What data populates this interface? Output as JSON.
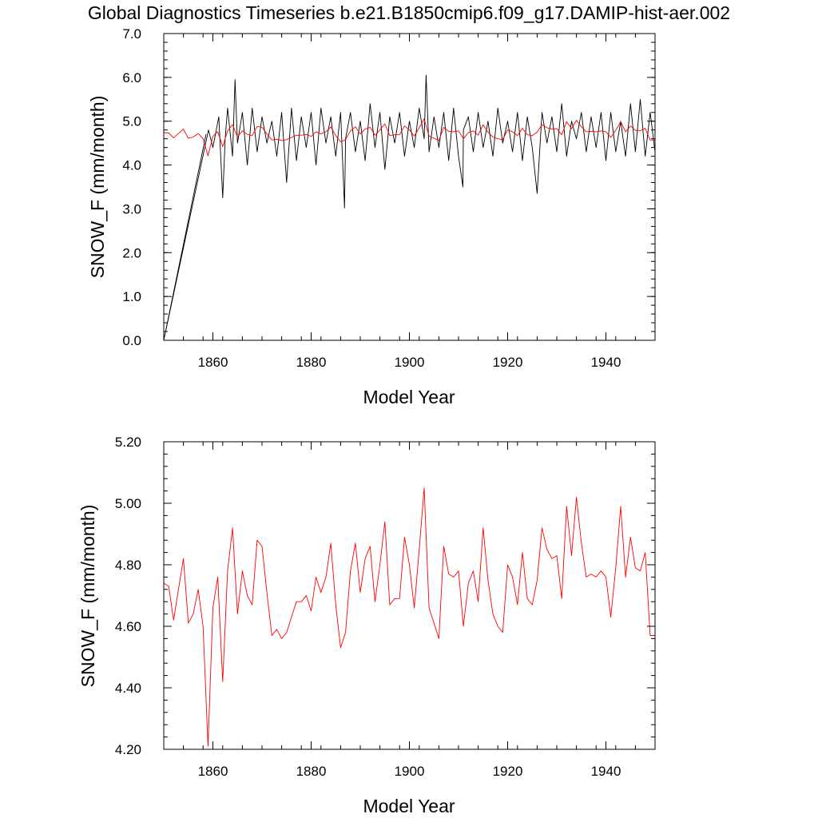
{
  "page_title": "Global Diagnostics Timeseries b.e21.B1850cmip6.f09_g17.DAMIP-hist-aer.002",
  "colors": {
    "monthly": "#000000",
    "annual": "#ff0000",
    "axis": "#000000"
  },
  "chart_data": [
    {
      "type": "line",
      "xlabel": "Model Year",
      "ylabel": "SNOW_F (mm/month)",
      "xlim": [
        1850,
        1950
      ],
      "ylim": [
        0.0,
        7.0
      ],
      "xticks": [
        1860,
        1880,
        1900,
        1920,
        1940
      ],
      "xtick_labels": [
        "1860",
        "1880",
        "1900",
        "1920",
        "1940"
      ],
      "yticks": [
        0.0,
        1.0,
        2.0,
        3.0,
        4.0,
        5.0,
        6.0,
        7.0
      ],
      "ytick_labels": [
        "0.0",
        "1.0",
        "2.0",
        "3.0",
        "4.0",
        "5.0",
        "6.0",
        "7.0"
      ],
      "grid": false,
      "series": [
        {
          "role": "monthly",
          "color": "#000000",
          "x": [
            1850.0,
            1858.6,
            1850.0,
            1859.1,
            1860.0,
            1861.2,
            1862.0,
            1862.5,
            1863.0,
            1864.0,
            1864.5,
            1865.0,
            1866.0,
            1867.0,
            1868.0,
            1869.0,
            1870.0,
            1871.0,
            1872.0,
            1873.0,
            1874.0,
            1875.0,
            1876.0,
            1877.0,
            1878.0,
            1879.0,
            1880.0,
            1881.0,
            1882.0,
            1883.0,
            1884.0,
            1885.0,
            1886.0,
            1886.8,
            1887.0,
            1888.0,
            1889.0,
            1890.0,
            1891.0,
            1892.0,
            1893.0,
            1894.0,
            1895.0,
            1896.0,
            1897.0,
            1898.0,
            1899.0,
            1900.0,
            1901.0,
            1902.0,
            1903.0,
            1903.4,
            1904.0,
            1905.0,
            1906.0,
            1907.0,
            1908.0,
            1909.0,
            1910.0,
            1910.9,
            1911.0,
            1912.0,
            1913.0,
            1914.0,
            1915.0,
            1916.0,
            1917.0,
            1918.0,
            1919.0,
            1920.0,
            1921.0,
            1922.0,
            1923.0,
            1924.0,
            1925.0,
            1926.0,
            1927.0,
            1928.0,
            1929.0,
            1930.0,
            1931.0,
            1932.0,
            1933.0,
            1934.0,
            1935.0,
            1936.0,
            1937.0,
            1938.0,
            1939.0,
            1940.0,
            1941.0,
            1942.0,
            1943.0,
            1944.0,
            1945.0,
            1946.0,
            1947.0,
            1948.0,
            1949.0,
            1950.0
          ],
          "y": [
            0.0,
            4.7,
            0.0,
            4.8,
            4.4,
            5.1,
            3.25,
            4.6,
            5.3,
            4.2,
            5.95,
            4.5,
            5.2,
            4.0,
            5.3,
            4.3,
            5.1,
            4.5,
            5.0,
            4.2,
            5.2,
            3.6,
            5.3,
            4.1,
            5.1,
            4.4,
            5.2,
            4.0,
            5.3,
            4.5,
            5.1,
            4.2,
            5.2,
            3.02,
            4.6,
            5.2,
            4.3,
            5.0,
            4.1,
            5.4,
            4.4,
            5.2,
            3.9,
            5.1,
            4.5,
            5.2,
            4.2,
            5.0,
            4.4,
            5.3,
            4.6,
            6.05,
            4.3,
            5.1,
            4.4,
            5.2,
            4.1,
            5.3,
            4.2,
            3.5,
            4.8,
            5.1,
            4.3,
            5.2,
            4.4,
            5.0,
            4.2,
            5.3,
            4.5,
            5.0,
            4.3,
            5.2,
            4.1,
            5.1,
            4.4,
            3.35,
            5.2,
            4.5,
            5.1,
            4.3,
            5.4,
            4.2,
            5.0,
            4.6,
            5.2,
            4.3,
            5.1,
            4.4,
            5.2,
            4.1,
            5.2,
            4.3,
            5.0,
            4.2,
            5.4,
            4.3,
            5.5,
            4.2,
            5.2,
            4.3
          ]
        },
        {
          "role": "annual",
          "color": "#ff0000",
          "x": [
            1850,
            1851,
            1852,
            1853,
            1854,
            1855,
            1856,
            1857,
            1858,
            1859,
            1860,
            1861,
            1862,
            1863,
            1864,
            1865,
            1866,
            1867,
            1868,
            1869,
            1870,
            1871,
            1872,
            1873,
            1874,
            1875,
            1876,
            1877,
            1878,
            1879,
            1880,
            1881,
            1882,
            1883,
            1884,
            1885,
            1886,
            1887,
            1888,
            1889,
            1890,
            1891,
            1892,
            1893,
            1894,
            1895,
            1896,
            1897,
            1898,
            1899,
            1900,
            1901,
            1902,
            1903,
            1904,
            1905,
            1906,
            1907,
            1908,
            1909,
            1910,
            1911,
            1912,
            1913,
            1914,
            1915,
            1916,
            1917,
            1918,
            1919,
            1920,
            1921,
            1922,
            1923,
            1924,
            1925,
            1926,
            1927,
            1928,
            1929,
            1930,
            1931,
            1932,
            1933,
            1934,
            1935,
            1936,
            1937,
            1938,
            1939,
            1940,
            1941,
            1942,
            1943,
            1944,
            1945,
            1946,
            1947,
            1948,
            1949,
            1950
          ],
          "y": [
            4.74,
            4.73,
            4.62,
            4.72,
            4.82,
            4.61,
            4.64,
            4.72,
            4.6,
            4.21,
            4.66,
            4.76,
            4.42,
            4.78,
            4.92,
            4.64,
            4.78,
            4.7,
            4.67,
            4.88,
            4.86,
            4.71,
            4.57,
            4.59,
            4.56,
            4.58,
            4.63,
            4.68,
            4.68,
            4.7,
            4.65,
            4.76,
            4.71,
            4.76,
            4.87,
            4.67,
            4.53,
            4.58,
            4.78,
            4.87,
            4.71,
            4.82,
            4.86,
            4.68,
            4.8,
            4.94,
            4.67,
            4.69,
            4.69,
            4.89,
            4.8,
            4.66,
            4.85,
            5.05,
            4.66,
            4.61,
            4.56,
            4.86,
            4.77,
            4.76,
            4.78,
            4.6,
            4.74,
            4.78,
            4.68,
            4.92,
            4.75,
            4.64,
            4.6,
            4.58,
            4.8,
            4.76,
            4.67,
            4.84,
            4.69,
            4.67,
            4.75,
            4.92,
            4.85,
            4.82,
            4.83,
            4.69,
            4.99,
            4.83,
            5.02,
            4.87,
            4.76,
            4.77,
            4.76,
            4.78,
            4.76,
            4.63,
            4.79,
            4.99,
            4.76,
            4.89,
            4.79,
            4.78,
            4.84,
            4.57,
            4.57
          ]
        }
      ]
    },
    {
      "type": "line",
      "xlabel": "Model Year",
      "ylabel": "SNOW_F (mm/month)",
      "xlim": [
        1850,
        1950
      ],
      "ylim": [
        4.2,
        5.2
      ],
      "xticks": [
        1860,
        1880,
        1900,
        1920,
        1940
      ],
      "xtick_labels": [
        "1860",
        "1880",
        "1900",
        "1920",
        "1940"
      ],
      "yticks": [
        4.2,
        4.4,
        4.6,
        4.8,
        5.0,
        5.2
      ],
      "ytick_labels": [
        "4.20",
        "4.40",
        "4.60",
        "4.80",
        "5.00",
        "5.20"
      ],
      "grid": false,
      "series": [
        {
          "role": "annual",
          "color": "#ff0000",
          "x": [
            1850,
            1851,
            1852,
            1853,
            1854,
            1855,
            1856,
            1857,
            1858,
            1859,
            1860,
            1861,
            1862,
            1863,
            1864,
            1865,
            1866,
            1867,
            1868,
            1869,
            1870,
            1871,
            1872,
            1873,
            1874,
            1875,
            1876,
            1877,
            1878,
            1879,
            1880,
            1881,
            1882,
            1883,
            1884,
            1885,
            1886,
            1887,
            1888,
            1889,
            1890,
            1891,
            1892,
            1893,
            1894,
            1895,
            1896,
            1897,
            1898,
            1899,
            1900,
            1901,
            1902,
            1903,
            1904,
            1905,
            1906,
            1907,
            1908,
            1909,
            1910,
            1911,
            1912,
            1913,
            1914,
            1915,
            1916,
            1917,
            1918,
            1919,
            1920,
            1921,
            1922,
            1923,
            1924,
            1925,
            1926,
            1927,
            1928,
            1929,
            1930,
            1931,
            1932,
            1933,
            1934,
            1935,
            1936,
            1937,
            1938,
            1939,
            1940,
            1941,
            1942,
            1943,
            1944,
            1945,
            1946,
            1947,
            1948,
            1949,
            1950
          ],
          "y": [
            4.74,
            4.73,
            4.62,
            4.72,
            4.82,
            4.61,
            4.64,
            4.72,
            4.6,
            4.21,
            4.66,
            4.76,
            4.42,
            4.78,
            4.92,
            4.64,
            4.78,
            4.7,
            4.67,
            4.88,
            4.86,
            4.71,
            4.57,
            4.59,
            4.56,
            4.58,
            4.63,
            4.68,
            4.68,
            4.7,
            4.65,
            4.76,
            4.71,
            4.76,
            4.87,
            4.67,
            4.53,
            4.58,
            4.78,
            4.87,
            4.71,
            4.82,
            4.86,
            4.68,
            4.8,
            4.94,
            4.67,
            4.69,
            4.69,
            4.89,
            4.8,
            4.66,
            4.85,
            5.05,
            4.66,
            4.61,
            4.56,
            4.86,
            4.77,
            4.76,
            4.78,
            4.6,
            4.74,
            4.78,
            4.68,
            4.92,
            4.75,
            4.64,
            4.6,
            4.58,
            4.8,
            4.76,
            4.67,
            4.84,
            4.69,
            4.67,
            4.75,
            4.92,
            4.85,
            4.82,
            4.83,
            4.69,
            4.99,
            4.83,
            5.02,
            4.87,
            4.76,
            4.77,
            4.76,
            4.78,
            4.76,
            4.63,
            4.79,
            4.99,
            4.76,
            4.89,
            4.79,
            4.78,
            4.84,
            4.57,
            4.57
          ]
        }
      ]
    }
  ]
}
